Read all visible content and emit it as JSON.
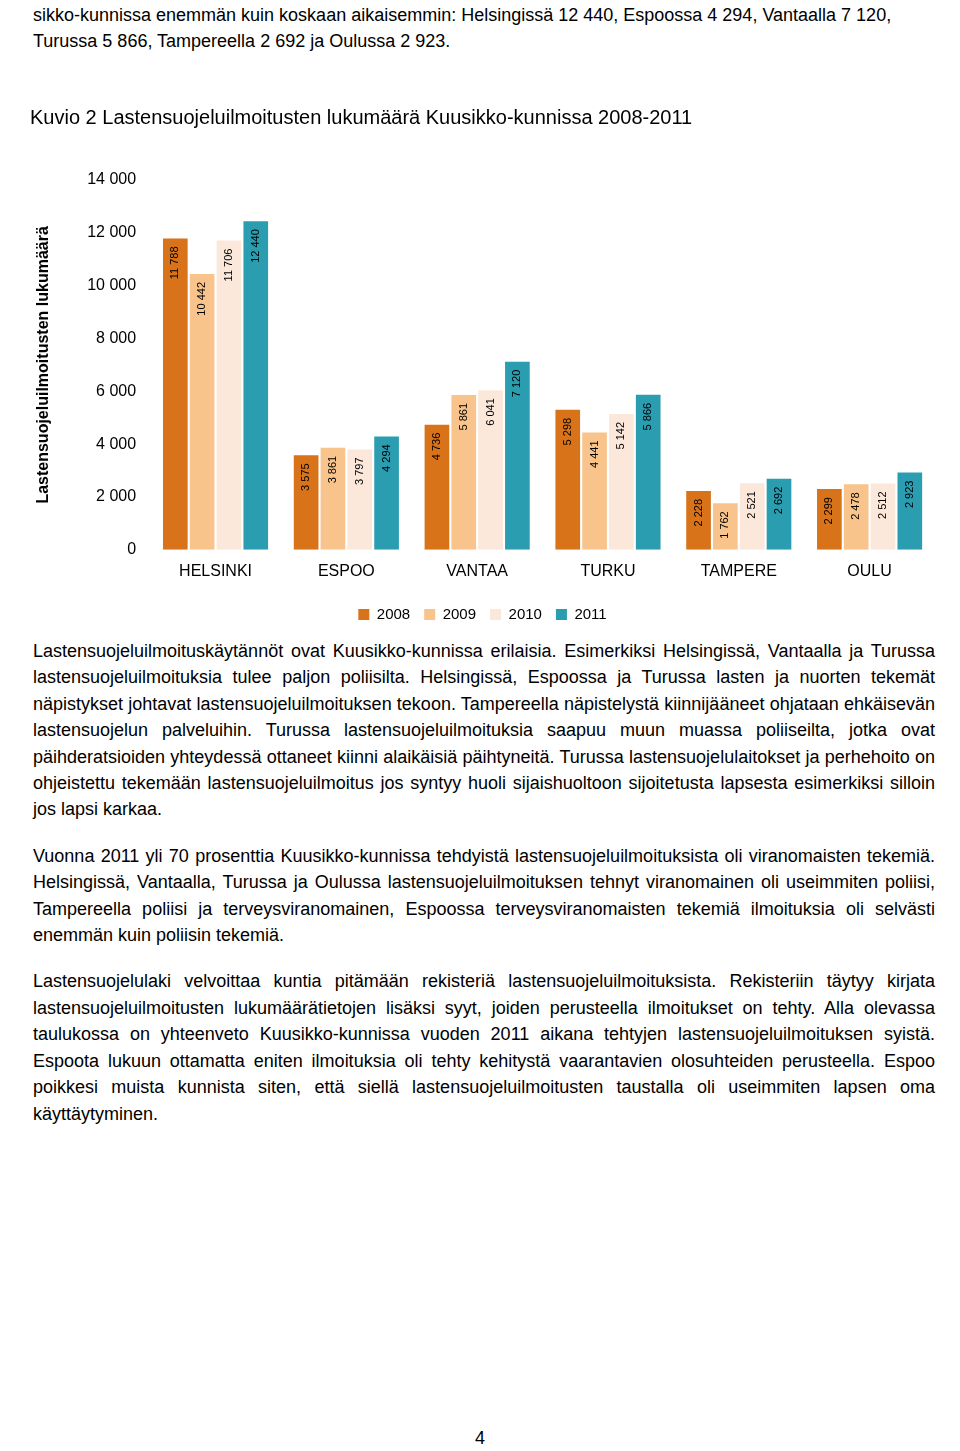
{
  "header_text": "sikko-kunnissa enemmän kuin koskaan aikaisemmin: Helsingissä 12 440, Espoossa 4 294, Vantaalla 7 120, Turussa 5 866, Tampereella 2 692 ja Oulussa 2 923.",
  "chart_data": {
    "type": "bar",
    "title": "Kuvio 2 Lastensuojeluilmoitusten lukumäärä Kuusikko-kunnissa 2008-2011",
    "y_label": "Lastensuojeluilmoitusten lukumäärä",
    "categories": [
      "HELSINKI",
      "ESPOO",
      "VANTAA",
      "TURKU",
      "TAMPERE",
      "OULU"
    ],
    "series": [
      {
        "name": "2008",
        "color": "#d8731a",
        "values": [
          11788,
          3575,
          4736,
          5298,
          2228,
          2299
        ],
        "value_labels": [
          "11 788",
          "3 575",
          "4 736",
          "5 298",
          "2 228",
          "2 299"
        ]
      },
      {
        "name": "2009",
        "color": "#f8c48c",
        "values": [
          10442,
          3861,
          5861,
          4441,
          1762,
          2478
        ],
        "value_labels": [
          "10 442",
          "3 861",
          "5 861",
          "4 441",
          "1 762",
          "2 478"
        ]
      },
      {
        "name": "2010",
        "color": "#fce8da",
        "values": [
          11706,
          3797,
          6041,
          5142,
          2521,
          2512
        ],
        "value_labels": [
          "11 706",
          "3 797",
          "6 041",
          "5 142",
          "2 521",
          "2 512"
        ]
      },
      {
        "name": "2011",
        "color": "#2a9db0",
        "values": [
          12440,
          4294,
          7120,
          5866,
          2692,
          2923
        ],
        "value_labels": [
          "12 440",
          "4 294",
          "7 120",
          "5 866",
          "2 692",
          "2 923"
        ]
      }
    ],
    "ylim": [
      0,
      14000
    ],
    "yticks": [
      0,
      {
        "value": 2000,
        "label": "2 000"
      },
      {
        "value": 4000,
        "label": "4 000"
      },
      {
        "value": 6000,
        "label": "6 000"
      },
      {
        "value": 8000,
        "label": "8 000"
      },
      {
        "value": 10000,
        "label": "10 000"
      },
      {
        "value": 12000,
        "label": "12 000"
      },
      {
        "value": 14000,
        "label": "14 000"
      }
    ],
    "grid": false,
    "legend": "bottom",
    "data_labels": true
  },
  "paragraphs": [
    "Lastensuojeluilmoituskäytännöt ovat Kuusikko-kunnissa erilaisia. Esimerkiksi Helsingissä, Vantaalla ja Turussa lastensuojeluilmoituksia tulee paljon poliisilta. Helsingissä, Espoossa ja Turussa lasten ja nuorten tekemät näpistykset johtavat lastensuojeluilmoituksen tekoon. Tampereella näpistelystä kiinnijääneet ohjataan ehkäisevän lastensuojelun palveluihin. Turussa lastensuojeluilmoituksia saapuu muun muassa poliiseilta, jotka ovat päihderatsioiden yhteydessä ottaneet kiinni alaikäisiä päihtyneitä. Turussa lastensuojelulaitokset ja perhehoito on ohjeistettu tekemään lastensuojeluilmoitus jos syntyy huoli sijaishuoltoon sijoitetusta lapsesta esimerkiksi silloin jos lapsi karkaa.",
    "Vuonna 2011 yli 70 prosenttia Kuusikko-kunnissa tehdyistä lastensuojeluilmoituksista oli viranomaisten tekemiä. Helsingissä, Vantaalla, Turussa ja Oulussa lastensuojeluilmoituksen tehnyt viranomainen oli useimmiten poliisi, Tampereella poliisi ja terveysviranomainen, Espoossa terveysviranomaisten tekemiä ilmoituksia oli selvästi enemmän kuin poliisin tekemiä.",
    "Lastensuojelulaki velvoittaa kuntia pitämään rekisteriä lastensuojeluilmoituksista. Rekisteriin täytyy kirjata lastensuojeluilmoitusten lukumäärätietojen lisäksi syyt, joiden perusteella ilmoitukset on tehty. Alla olevassa taulukossa on yhteenveto Kuusikko-kunnissa vuoden 2011 aikana tehtyjen lastensuojeluilmoituksen syistä. Espoota lukuun ottamatta eniten ilmoituksia oli tehty kehitystä vaarantavien olosuhteiden perusteella. Espoo poikkesi muista kunnista siten, että siellä lastensuojeluilmoitusten taustalla oli useimmiten lapsen oma käyttäytyminen."
  ],
  "page_number": "4"
}
